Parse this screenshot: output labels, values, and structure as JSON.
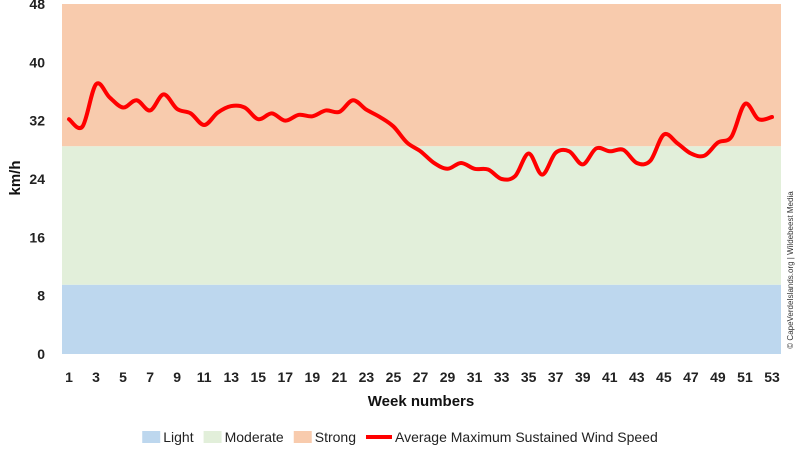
{
  "chart_data": {
    "type": "line",
    "title": "",
    "xlabel": "Week numbers",
    "ylabel": "km/h",
    "ylim": [
      0,
      48
    ],
    "xlim": [
      1,
      53
    ],
    "yticks": [
      0,
      8,
      16,
      24,
      32,
      40,
      48
    ],
    "xticks": [
      1,
      3,
      5,
      7,
      9,
      11,
      13,
      15,
      17,
      19,
      21,
      23,
      25,
      27,
      29,
      31,
      33,
      35,
      37,
      39,
      41,
      43,
      45,
      47,
      49,
      51,
      53
    ],
    "bands": [
      {
        "name": "Light",
        "from": 0,
        "to": 9.5,
        "color": "#bdd7ee"
      },
      {
        "name": "Moderate",
        "from": 9.5,
        "to": 28.5,
        "color": "#e2efda"
      },
      {
        "name": "Strong",
        "from": 28.5,
        "to": 48,
        "color": "#f8cbad"
      }
    ],
    "series": [
      {
        "name": "Average Maximum Sustained Wind Speed",
        "color": "#ff0000",
        "x": [
          1,
          2,
          3,
          4,
          5,
          6,
          7,
          8,
          9,
          10,
          11,
          12,
          13,
          14,
          15,
          16,
          17,
          18,
          19,
          20,
          21,
          22,
          23,
          24,
          25,
          26,
          27,
          28,
          29,
          30,
          31,
          32,
          33,
          34,
          35,
          36,
          37,
          38,
          39,
          40,
          41,
          42,
          43,
          44,
          45,
          46,
          47,
          48,
          49,
          50,
          51,
          52,
          53
        ],
        "values": [
          32.2,
          31.2,
          37.0,
          35.2,
          33.8,
          34.8,
          33.4,
          35.6,
          33.6,
          33.0,
          31.4,
          33.1,
          34.0,
          33.8,
          32.2,
          33.0,
          32.0,
          32.8,
          32.6,
          33.4,
          33.2,
          34.8,
          33.5,
          32.5,
          31.2,
          29.0,
          27.8,
          26.2,
          25.4,
          26.2,
          25.4,
          25.3,
          24.0,
          24.4,
          27.5,
          24.6,
          27.6,
          27.8,
          26.0,
          28.2,
          27.8,
          28.0,
          26.2,
          26.5,
          30.1,
          28.9,
          27.5,
          27.2,
          29.0,
          29.8,
          34.3,
          32.2,
          32.5
        ]
      }
    ],
    "legend_position": "bottom",
    "grid": false
  },
  "credit": "© CapeVerdeIslands.org | Wildebeest Media"
}
